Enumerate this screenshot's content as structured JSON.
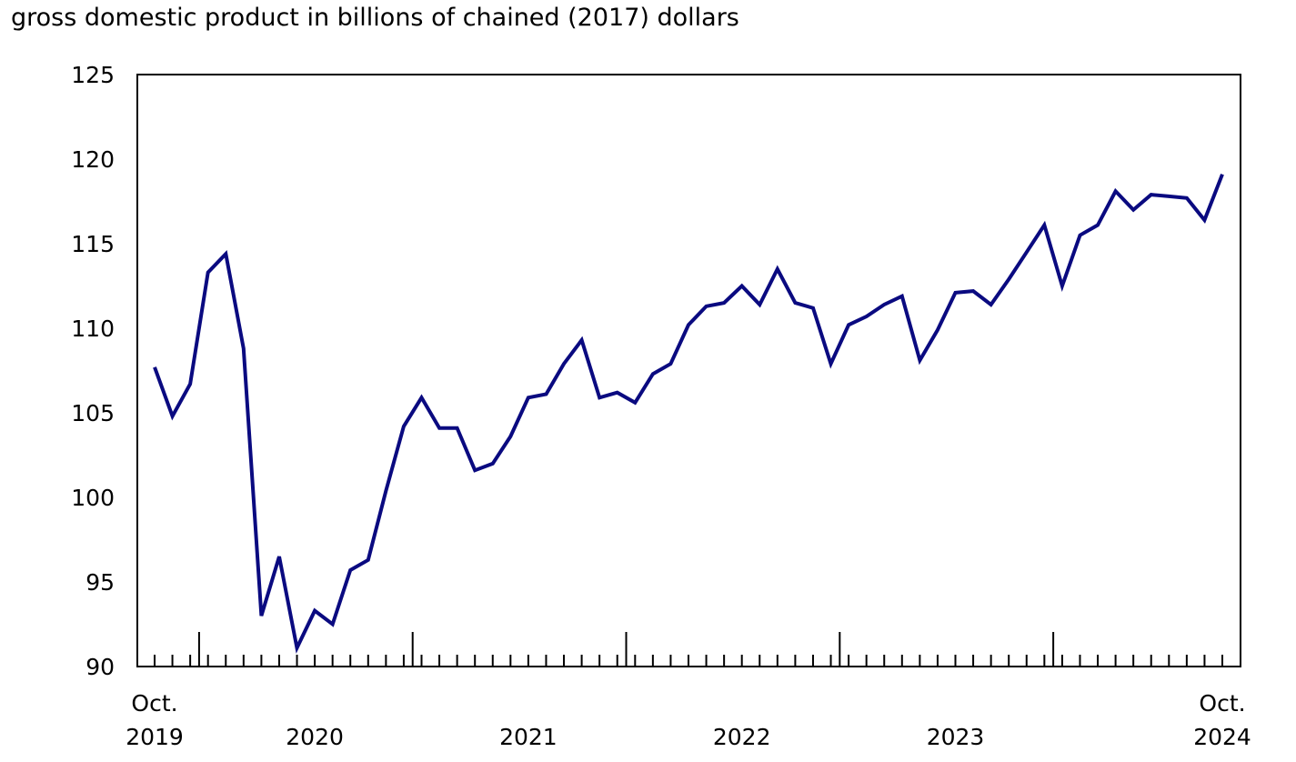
{
  "chart_data": {
    "type": "line",
    "title": "gross domestic product in billions of chained (2017) dollars",
    "xlabel": "",
    "ylabel": "",
    "ylim": [
      90,
      125
    ],
    "yticks": [
      90,
      95,
      100,
      105,
      110,
      115,
      120,
      125
    ],
    "grid": false,
    "legend": "none",
    "x_start": "Oct. 2019",
    "x_end": "Oct. 2024",
    "x_tick_labels": [
      {
        "index": 0,
        "lines": [
          "Oct.",
          "2019"
        ]
      },
      {
        "index": 9,
        "lines": [
          "",
          "2020"
        ]
      },
      {
        "index": 21,
        "lines": [
          "",
          "2021"
        ]
      },
      {
        "index": 33,
        "lines": [
          "",
          "2022"
        ]
      },
      {
        "index": 45,
        "lines": [
          "",
          "2023"
        ]
      },
      {
        "index": 60,
        "lines": [
          "Oct.",
          "2024"
        ]
      }
    ],
    "year_tick_indices": [
      3,
      15,
      27,
      39,
      51
    ],
    "series": [
      {
        "name": "GDP",
        "color": "#0a0a80",
        "values": [
          107.7,
          104.8,
          106.7,
          113.3,
          114.4,
          108.8,
          93.0,
          96.5,
          91.1,
          93.3,
          92.5,
          95.7,
          96.3,
          100.4,
          104.2,
          105.9,
          104.1,
          104.1,
          101.6,
          102.0,
          103.6,
          105.9,
          106.1,
          107.9,
          109.3,
          105.9,
          106.2,
          105.6,
          107.3,
          107.9,
          110.2,
          111.3,
          111.5,
          112.5,
          111.4,
          113.5,
          111.5,
          111.2,
          107.9,
          110.2,
          110.7,
          111.4,
          111.9,
          108.1,
          109.9,
          112.1,
          112.2,
          111.4,
          112.9,
          114.5,
          116.1,
          112.5,
          115.5,
          116.1,
          118.1,
          117.0,
          117.9,
          117.8,
          117.7,
          116.4,
          119.1
        ]
      }
    ]
  }
}
